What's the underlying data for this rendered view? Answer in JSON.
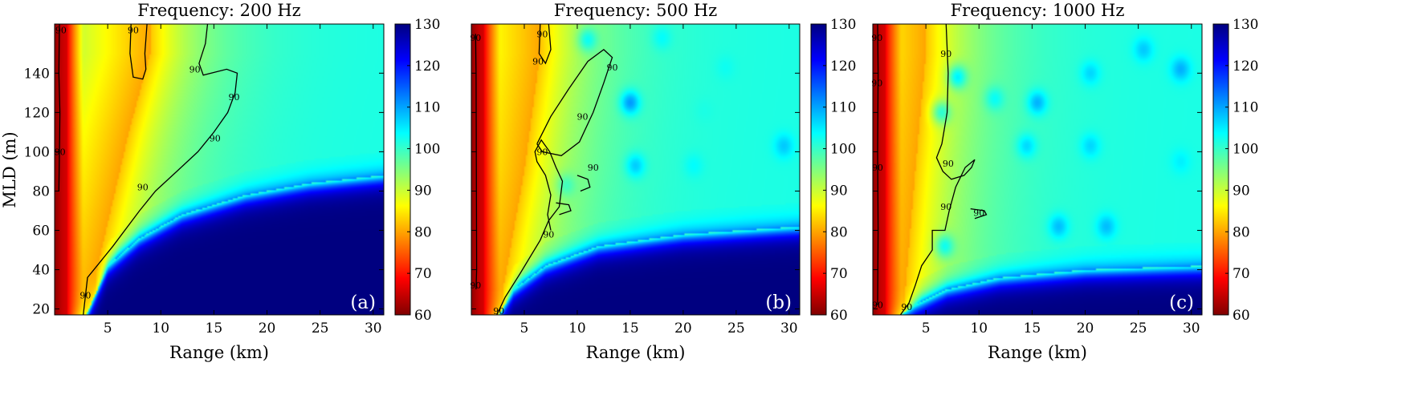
{
  "figure": {
    "ylabel": "MLD (m)",
    "xlabel": "Range (km)"
  },
  "colormap": {
    "name": "jet-reversed",
    "stops": [
      "#800000",
      "#ff0000",
      "#ff8000",
      "#ffff00",
      "#80ff80",
      "#00ffff",
      "#0080ff",
      "#0000ff",
      "#000080"
    ]
  },
  "chart_data": [
    {
      "type": "heatmap",
      "title": "Frequency: 200 Hz",
      "panel_label": "(a)",
      "xlim": [
        0,
        31
      ],
      "ylim": [
        17,
        165
      ],
      "x_ticks": [
        5,
        10,
        15,
        20,
        25,
        30
      ],
      "y_ticks": [
        20,
        40,
        60,
        80,
        100,
        120,
        140
      ],
      "colorbar": {
        "min": 60,
        "max": 130,
        "ticks": [
          60,
          70,
          80,
          90,
          100,
          110,
          120,
          130
        ]
      },
      "field": {
        "near_field_km": 1.2,
        "shadow_boundary": [
          [
            3.0,
            17
          ],
          [
            5,
            42
          ],
          [
            8,
            56
          ],
          [
            12,
            68
          ],
          [
            18,
            78
          ],
          [
            24,
            84
          ],
          [
            31,
            88
          ]
        ],
        "ridge": [
          [
            4,
            40
          ],
          [
            7,
            110
          ],
          [
            9,
            150
          ]
        ],
        "hotspots": []
      },
      "contour_level": 90,
      "contours": [
        {
          "points": [
            [
              2.7,
              17
            ],
            [
              3.1,
              36
            ],
            [
              5.5,
              52
            ],
            [
              8,
              70
            ],
            [
              9.5,
              80
            ],
            [
              11.5,
              90
            ],
            [
              13.5,
              100
            ],
            [
              15,
              110
            ],
            [
              16.3,
              120
            ],
            [
              17,
              130
            ],
            [
              17.2,
              140
            ],
            [
              16.2,
              142
            ],
            [
              14,
              139
            ],
            [
              13.6,
              145
            ],
            [
              14.2,
              155
            ],
            [
              14.4,
              165
            ]
          ],
          "labels": [
            [
              2.9,
              27
            ],
            [
              8.3,
              82
            ],
            [
              15.1,
              107
            ],
            [
              16.9,
              128
            ],
            [
              13.2,
              142
            ]
          ]
        },
        {
          "points": [
            [
              7.2,
              165
            ],
            [
              7.1,
              150
            ],
            [
              7.4,
              138
            ],
            [
              8.3,
              137
            ],
            [
              8.6,
              142
            ],
            [
              8.5,
              150
            ],
            [
              8.7,
              165
            ]
          ],
          "labels": [
            [
              7.4,
              162
            ]
          ]
        },
        {
          "points": [
            [
              0.45,
              165
            ],
            [
              0.4,
              140
            ],
            [
              0.5,
              120
            ],
            [
              0.45,
              100
            ],
            [
              0.4,
              80
            ]
          ],
          "labels": [
            [
              0.6,
              162
            ],
            [
              0.5,
              100
            ]
          ]
        }
      ]
    },
    {
      "type": "heatmap",
      "title": "Frequency: 500 Hz",
      "panel_label": "(b)",
      "xlim": [
        0,
        31
      ],
      "ylim": [
        17,
        165
      ],
      "x_ticks": [
        5,
        10,
        15,
        20,
        25,
        30
      ],
      "y_ticks": [
        20,
        40,
        60,
        80,
        100,
        120,
        140
      ],
      "colorbar": {
        "min": 60,
        "max": 130,
        "ticks": [
          60,
          70,
          80,
          90,
          100,
          110,
          120,
          130
        ]
      },
      "field": {
        "near_field_km": 1.2,
        "shadow_boundary": [
          [
            2.6,
            17
          ],
          [
            4,
            30
          ],
          [
            7,
            42
          ],
          [
            12,
            52
          ],
          [
            20,
            58
          ],
          [
            31,
            62
          ]
        ],
        "ridge": [
          [
            3,
            30
          ],
          [
            5,
            90
          ],
          [
            6.5,
            150
          ]
        ],
        "hotspots": [
          [
            15,
            125,
            112
          ],
          [
            15.5,
            93,
            108
          ],
          [
            29.5,
            103,
            108
          ],
          [
            18,
            158,
            104
          ],
          [
            24,
            143,
            103
          ],
          [
            21,
            93,
            104
          ],
          [
            11,
            157,
            104
          ],
          [
            22,
            121,
            102
          ],
          [
            9,
            83,
            100
          ]
        ]
      },
      "contour_level": 90,
      "contours": [
        {
          "points": [
            [
              2.4,
              17
            ],
            [
              3.2,
              26
            ],
            [
              4.6,
              38
            ],
            [
              6.5,
              55
            ],
            [
              7.3,
              65
            ],
            [
              8.3,
              72
            ],
            [
              8.6,
              85
            ],
            [
              8,
              92
            ],
            [
              7.4,
              100
            ],
            [
              6.6,
              106
            ],
            [
              6,
              100
            ],
            [
              6.2,
              95
            ],
            [
              7,
              88
            ],
            [
              7.5,
              78
            ],
            [
              7.2,
              68
            ],
            [
              7.5,
              60
            ]
          ],
          "labels": [
            [
              2.6,
              19
            ],
            [
              7.3,
              58
            ]
          ]
        },
        {
          "points": [
            [
              6.2,
              104
            ],
            [
              7.5,
              118
            ],
            [
              9.2,
              132
            ],
            [
              11,
              146
            ],
            [
              12.5,
              152
            ],
            [
              13.3,
              148
            ],
            [
              12.5,
              135
            ],
            [
              11.5,
              120
            ],
            [
              10.2,
              105
            ],
            [
              8.5,
              98
            ],
            [
              6.7,
              100
            ],
            [
              6.2,
              104
            ]
          ],
          "labels": [
            [
              11.5,
              92
            ],
            [
              13.3,
              143
            ],
            [
              6.7,
              100
            ],
            [
              10.5,
              118
            ]
          ]
        },
        {
          "points": [
            [
              6.5,
              165
            ],
            [
              6.4,
              150
            ],
            [
              7,
              145
            ],
            [
              7.5,
              152
            ],
            [
              7.3,
              165
            ]
          ],
          "labels": [
            [
              6.3,
              146
            ],
            [
              6.7,
              160
            ]
          ]
        },
        {
          "points": [
            [
              10,
              88
            ],
            [
              11,
              86
            ],
            [
              11.2,
              82
            ],
            [
              10.3,
              80
            ]
          ],
          "labels": []
        },
        {
          "points": [
            [
              8,
              74
            ],
            [
              9.2,
              73
            ],
            [
              9.4,
              70
            ],
            [
              8.3,
              68
            ]
          ],
          "labels": []
        },
        {
          "points": [
            [
              0.4,
              160
            ],
            [
              0.45,
              140
            ],
            [
              0.5,
              40
            ],
            [
              0.45,
              30
            ]
          ],
          "labels": [
            [
              0.4,
              158
            ],
            [
              0.4,
              32
            ]
          ]
        }
      ]
    },
    {
      "type": "heatmap",
      "title": "Frequency: 1000 Hz",
      "panel_label": "(c)",
      "xlim": [
        0,
        31
      ],
      "ylim": [
        17,
        165
      ],
      "x_ticks": [
        5,
        10,
        15,
        20,
        25,
        30
      ],
      "y_ticks": [
        20,
        40,
        60,
        80,
        100,
        120,
        140
      ],
      "colorbar": {
        "min": 60,
        "max": 130,
        "ticks": [
          60,
          70,
          80,
          90,
          100,
          110,
          120,
          130
        ]
      },
      "field": {
        "near_field_km": 1.2,
        "shadow_boundary": [
          [
            2.6,
            17
          ],
          [
            4,
            22
          ],
          [
            7,
            30
          ],
          [
            12,
            36
          ],
          [
            20,
            40
          ],
          [
            31,
            42
          ]
        ],
        "ridge": [
          [
            3,
            25
          ],
          [
            4,
            90
          ],
          [
            5,
            150
          ]
        ],
        "hotspots": [
          [
            17.5,
            62,
            109
          ],
          [
            22,
            62,
            109
          ],
          [
            29,
            142,
            110
          ],
          [
            25.5,
            152,
            108
          ],
          [
            20.5,
            140,
            107
          ],
          [
            8,
            138,
            106
          ],
          [
            15.5,
            125,
            110
          ],
          [
            14.5,
            103,
            107
          ],
          [
            20.5,
            103,
            107
          ],
          [
            29,
            95,
            105
          ],
          [
            11.5,
            127,
            104
          ],
          [
            6.8,
            52,
            104
          ],
          [
            6.5,
            120,
            102
          ]
        ]
      },
      "contour_level": 90,
      "contours": [
        {
          "points": [
            [
              2.6,
              17
            ],
            [
              3.4,
              23
            ],
            [
              4,
              32
            ],
            [
              4.6,
              42
            ],
            [
              5.6,
              50
            ],
            [
              5.6,
              60
            ],
            [
              6.8,
              60
            ],
            [
              7.2,
              70
            ],
            [
              7.8,
              82
            ],
            [
              8.7,
              92
            ],
            [
              9.6,
              96
            ],
            [
              9.3,
              92
            ],
            [
              8.6,
              88
            ],
            [
              7.4,
              86
            ],
            [
              6.6,
              90
            ],
            [
              6,
              97
            ],
            [
              6.5,
              104
            ],
            [
              7,
              120
            ],
            [
              7.1,
              140
            ],
            [
              6.9,
              165
            ]
          ],
          "labels": [
            [
              3.2,
              21
            ],
            [
              6.9,
              72
            ],
            [
              7.1,
              94
            ],
            [
              6.9,
              150
            ]
          ]
        },
        {
          "points": [
            [
              9.2,
              71
            ],
            [
              10.5,
              70
            ],
            [
              10.7,
              68
            ],
            [
              9.6,
              66
            ]
          ],
          "labels": [
            [
              10,
              69
            ]
          ]
        },
        {
          "points": [
            [
              0.45,
              165
            ],
            [
              0.5,
              140
            ],
            [
              0.45,
              100
            ],
            [
              0.5,
              60
            ],
            [
              0.45,
              22
            ]
          ],
          "labels": [
            [
              0.4,
              158
            ],
            [
              0.4,
              135
            ],
            [
              0.45,
              92
            ],
            [
              0.45,
              22
            ]
          ]
        }
      ]
    }
  ]
}
